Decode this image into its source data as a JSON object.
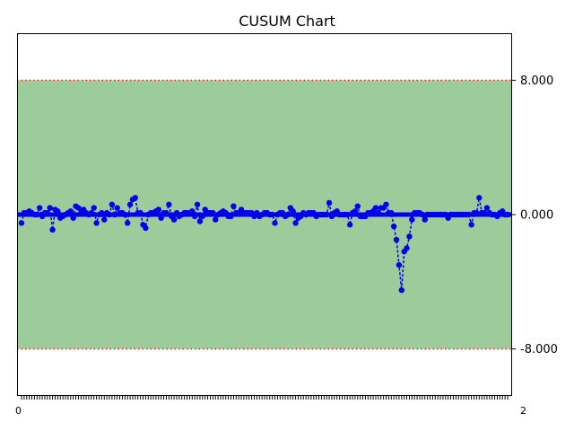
{
  "chart_data": {
    "type": "line",
    "title": "CUSUM Chart",
    "xlabel": "",
    "ylabel": "",
    "x_tick_labels": {
      "first": "0",
      "last": "2"
    },
    "ylim": [
      -10.8,
      10.8
    ],
    "y_ticks": [
      {
        "value": 8,
        "label": "8.000"
      },
      {
        "value": 0,
        "label": "0.000"
      },
      {
        "value": -8,
        "label": "-8.000"
      }
    ],
    "y_axis_side": "right",
    "control_limits": {
      "upper": 8,
      "lower": -8,
      "style": "dotted"
    },
    "grid": false,
    "legend": "none",
    "colors": {
      "band": "#9ccc9a",
      "limit": "#e8281f",
      "series": "#0000ee"
    },
    "series": [
      {
        "values": [
          -0.5,
          0.1,
          0.1,
          0.2,
          0.1,
          0.0,
          0.0,
          0.4,
          -0.1,
          0.1,
          0.1,
          0.4,
          -0.9,
          0.3,
          0.2,
          -0.2,
          -0.1,
          0.0,
          0.1,
          0.2,
          -0.2,
          0.5,
          0.4,
          0.1,
          0.3,
          0.1,
          0.0,
          0.1,
          0.4,
          -0.5,
          0.0,
          0.1,
          -0.3,
          0.1,
          0.0,
          0.6,
          0.0,
          0.4,
          0.1,
          0.1,
          0.0,
          -0.5,
          0.6,
          0.9,
          1.0,
          0.1,
          0.1,
          -0.6,
          -0.8,
          0.0,
          0.1,
          0.1,
          0.2,
          0.3,
          -0.2,
          0.1,
          0.1,
          0.6,
          -0.1,
          -0.3,
          0.1,
          -0.1,
          0.0,
          0.1,
          0.1,
          0.1,
          0.2,
          -0.1,
          0.6,
          -0.4,
          -0.1,
          0.3,
          0.1,
          0.1,
          0.1,
          -0.3,
          0.0,
          0.1,
          0.2,
          0.1,
          -0.1,
          -0.1,
          0.5,
          0.1,
          0.1,
          0.3,
          0.1,
          0.1,
          0.1,
          0.1,
          -0.1,
          0.1,
          -0.1,
          0.0,
          0.1,
          0.1,
          0.0,
          0.0,
          -0.5,
          0.0,
          0.1,
          0.1,
          -0.1,
          0.0,
          0.4,
          0.2,
          -0.5,
          -0.2,
          -0.1,
          0.1,
          0.0,
          0.1,
          0.1,
          0.1,
          -0.1,
          0.0,
          0.0,
          0.0,
          0.0,
          0.7,
          -0.1,
          0.1,
          0.2,
          0.0,
          0.0,
          0.0,
          0.0,
          -0.6,
          0.1,
          0.2,
          0.5,
          -0.1,
          -0.1,
          -0.1,
          0.1,
          0.1,
          0.2,
          0.4,
          0.1,
          0.4,
          0.4,
          0.6,
          0.1,
          0.1,
          -0.7,
          -1.5,
          -3.0,
          -4.5,
          -2.2,
          -2.0,
          -1.3,
          -0.3,
          0.1,
          0.1,
          0.1,
          0.0,
          -0.3,
          0.0,
          0.0,
          0.0,
          0.0,
          0.0,
          0.0,
          0.0,
          0.0,
          -0.2,
          0.0,
          0.0,
          0.0,
          0.0,
          0.0,
          0.0,
          0.0,
          0.0,
          -0.6,
          0.1,
          0.1,
          1.0,
          0.1,
          0.1,
          0.4,
          0.1,
          0.0,
          0.0,
          -0.1,
          0.1,
          0.2,
          0.0,
          0.0
        ]
      }
    ]
  }
}
